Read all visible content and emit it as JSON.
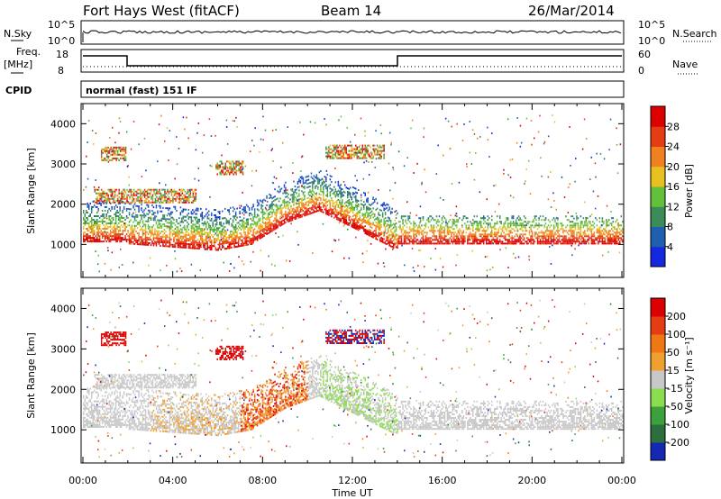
{
  "header": {
    "station": "Fort Hays West (fitACF)",
    "beam": "Beam 14",
    "date": "26/Mar/2014"
  },
  "strips": {
    "nsky_label": "N.Sky",
    "nsearch_label": "N.Search",
    "noise_ticks": [
      "10^5",
      "10^0"
    ],
    "freq_label_line1": "Freq.",
    "freq_label_line2": "[MHz]",
    "freq_ticks": [
      "18",
      "8"
    ],
    "nave_label": "Nave",
    "nave_ticks": [
      "60",
      "0"
    ],
    "cpid_label": "CPID",
    "cpid_text": "normal (fast) 151 IF"
  },
  "chart_data": [
    {
      "type": "heatmap",
      "panel": "power",
      "ylabel": "Slant Range [km]",
      "xlabel": "",
      "yticks": [
        1000,
        2000,
        3000,
        4000
      ],
      "ylim": [
        180,
        4500
      ],
      "xlim_hours": [
        0,
        24
      ],
      "colorbar": {
        "label": "Power [dB]",
        "ticks": [
          "4",
          "8",
          "12",
          "16",
          "20",
          "24",
          "28"
        ],
        "colors": [
          "#1428e0",
          "#1f5fb0",
          "#3c8c5a",
          "#64c03a",
          "#e8c020",
          "#f08020",
          "#e63c14",
          "#dc0000"
        ]
      }
    },
    {
      "type": "heatmap",
      "panel": "velocity",
      "ylabel": "Slant Range [km]",
      "xlabel": "Time UT",
      "yticks": [
        1000,
        2000,
        3000,
        4000
      ],
      "ylim": [
        180,
        4500
      ],
      "xlim_hours": [
        0,
        24
      ],
      "xticks": [
        "00:00",
        "04:00",
        "08:00",
        "12:00",
        "16:00",
        "20:00",
        "00:00"
      ],
      "colorbar": {
        "label": "Velocity [m s⁻¹]",
        "ticks": [
          "200",
          "100",
          "50",
          "15",
          "-15",
          "-50",
          "-100",
          "-200"
        ],
        "colors": [
          "#1428b4",
          "#2c6e3c",
          "#3ca03c",
          "#8cdc50",
          "#c8c8c8",
          "#f0a030",
          "#f07814",
          "#e63c14",
          "#dc0000"
        ]
      }
    }
  ]
}
